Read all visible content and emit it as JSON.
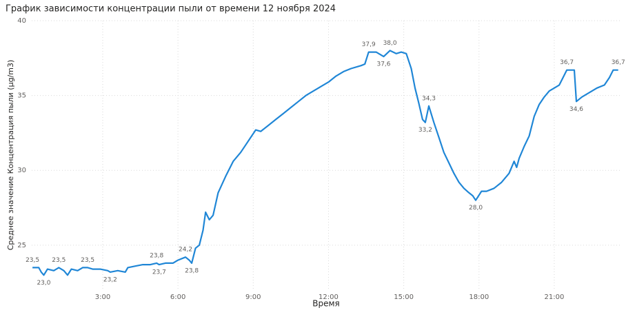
{
  "chart_data": {
    "type": "line",
    "title": "График зависимости концентрации пыли от времени 12 ноября 2024",
    "x_label": "Время",
    "y_label": "Среднее значение Концентрация пыли (µg/m3)",
    "xlim": [
      0.17,
      23.64
    ],
    "xticks": [
      {
        "value": 3,
        "label": "3:00"
      },
      {
        "value": 6,
        "label": "6:00"
      },
      {
        "value": 9,
        "label": "9:00"
      },
      {
        "value": 12,
        "label": "12:00"
      },
      {
        "value": 15,
        "label": "15:00"
      },
      {
        "value": 18,
        "label": "18:00"
      },
      {
        "value": 21,
        "label": "21:00"
      }
    ],
    "ylim": [
      22,
      40
    ],
    "yticks": [
      25,
      30,
      35,
      40
    ],
    "grid": true,
    "x": [
      0.2,
      0.45,
      0.55,
      0.65,
      0.8,
      1.05,
      1.25,
      1.45,
      1.6,
      1.75,
      2.0,
      2.2,
      2.4,
      2.6,
      2.9,
      3.2,
      3.3,
      3.6,
      3.9,
      4.0,
      4.3,
      4.6,
      4.9,
      5.15,
      5.25,
      5.5,
      5.8,
      6.0,
      6.3,
      6.45,
      6.55,
      6.7,
      6.85,
      7.0,
      7.1,
      7.25,
      7.4,
      7.6,
      7.9,
      8.2,
      8.5,
      8.7,
      8.9,
      9.1,
      9.3,
      9.6,
      9.9,
      10.2,
      10.5,
      10.8,
      11.1,
      11.4,
      11.7,
      12.0,
      12.3,
      12.6,
      12.9,
      13.3,
      13.45,
      13.6,
      13.9,
      14.2,
      14.45,
      14.7,
      14.9,
      15.1,
      15.3,
      15.45,
      15.6,
      15.75,
      15.86,
      16.0,
      16.2,
      16.4,
      16.6,
      16.8,
      17.0,
      17.2,
      17.4,
      17.6,
      17.75,
      17.87,
      18.1,
      18.3,
      18.6,
      18.9,
      19.2,
      19.4,
      19.5,
      19.6,
      19.8,
      20.0,
      20.2,
      20.4,
      20.6,
      20.8,
      21.0,
      21.2,
      21.35,
      21.5,
      21.8,
      21.88,
      22.1,
      22.4,
      22.7,
      23.0,
      23.2,
      23.35,
      23.55
    ],
    "series": [
      {
        "name": "Среднее значение Концентрация пыли (µg/m3)",
        "color": "#1f86d6",
        "values": [
          23.5,
          23.5,
          23.2,
          23.0,
          23.4,
          23.3,
          23.5,
          23.3,
          23.0,
          23.4,
          23.3,
          23.5,
          23.5,
          23.4,
          23.4,
          23.3,
          23.2,
          23.3,
          23.2,
          23.5,
          23.6,
          23.7,
          23.7,
          23.8,
          23.7,
          23.8,
          23.8,
          24.0,
          24.2,
          24.0,
          23.8,
          24.8,
          25.0,
          26.0,
          27.2,
          26.7,
          27.0,
          28.5,
          29.6,
          30.6,
          31.2,
          31.7,
          32.2,
          32.7,
          32.6,
          33.0,
          33.4,
          33.8,
          34.2,
          34.6,
          35.0,
          35.3,
          35.6,
          35.9,
          36.3,
          36.6,
          36.8,
          37.0,
          37.1,
          37.9,
          37.9,
          37.6,
          38.0,
          37.8,
          37.9,
          37.8,
          36.8,
          35.5,
          34.5,
          33.4,
          33.2,
          34.3,
          33.2,
          32.2,
          31.2,
          30.5,
          29.8,
          29.2,
          28.8,
          28.5,
          28.3,
          28.0,
          28.6,
          28.6,
          28.8,
          29.2,
          29.8,
          30.6,
          30.2,
          30.8,
          31.6,
          32.3,
          33.6,
          34.4,
          34.9,
          35.3,
          35.5,
          35.7,
          36.2,
          36.7,
          36.7,
          34.6,
          34.9,
          35.2,
          35.5,
          35.7,
          36.2,
          36.7,
          36.7
        ],
        "value_labels": [
          "23,5",
          null,
          null,
          "23,0",
          null,
          null,
          "23,5",
          null,
          null,
          null,
          null,
          null,
          "23,5",
          null,
          null,
          null,
          "23,2",
          null,
          null,
          null,
          null,
          null,
          null,
          "23,8",
          "23,7",
          null,
          null,
          null,
          "24,2",
          null,
          "23,8",
          null,
          null,
          null,
          null,
          null,
          null,
          null,
          null,
          null,
          null,
          null,
          null,
          null,
          null,
          null,
          null,
          null,
          null,
          null,
          null,
          null,
          null,
          null,
          null,
          null,
          null,
          null,
          null,
          "37,9",
          null,
          "37,6",
          "38,0",
          null,
          null,
          null,
          null,
          null,
          null,
          null,
          "33,2",
          "34,3",
          null,
          null,
          null,
          null,
          null,
          null,
          null,
          null,
          null,
          "28,0",
          null,
          null,
          null,
          null,
          null,
          null,
          null,
          null,
          null,
          null,
          null,
          null,
          null,
          null,
          null,
          null,
          null,
          "36,7",
          null,
          "34,6",
          null,
          null,
          null,
          null,
          null,
          null,
          "36,7"
        ]
      }
    ]
  }
}
